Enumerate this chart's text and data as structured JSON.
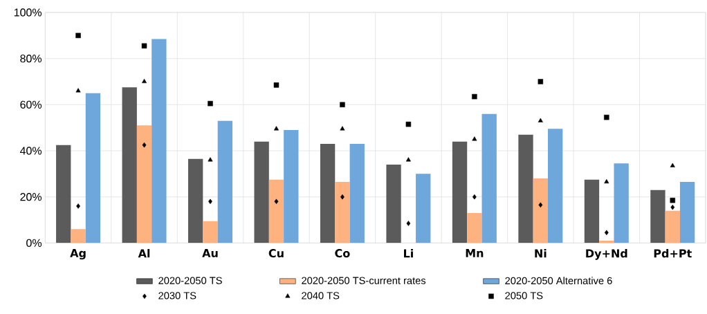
{
  "chart_data": {
    "type": "bar",
    "categories": [
      "Ag",
      "Al",
      "Au",
      "Cu",
      "Co",
      "Li",
      "Mn",
      "Ni",
      "Dy+Nd",
      "Pd+Pt"
    ],
    "series": [
      {
        "name": "2020-2050 TS",
        "color": "#5b5b5b",
        "values": [
          42.5,
          67.5,
          36.5,
          44,
          43,
          34,
          44,
          47,
          27.5,
          23
        ]
      },
      {
        "name": "2020-2050 TS-current rates",
        "color": "#fdb27f",
        "values": [
          6,
          51,
          9.5,
          27.5,
          26.5,
          null,
          13,
          28,
          1,
          14
        ]
      },
      {
        "name": "2020-2050 Alternative 6",
        "color": "#6ea7dc",
        "values": [
          65,
          88.5,
          53,
          49,
          43,
          30,
          56,
          49.5,
          34.5,
          26.5
        ]
      },
      {
        "name": "2030 TS",
        "type": "scatter",
        "marker": "diamond",
        "color": "#000000",
        "values": [
          16,
          42.5,
          18,
          18,
          20,
          8.5,
          20,
          16.5,
          4.5,
          15.5
        ]
      },
      {
        "name": "2040 TS",
        "type": "scatter",
        "marker": "triangle",
        "color": "#000000",
        "values": [
          66,
          70,
          36,
          49.5,
          49.5,
          36,
          45,
          53,
          26.5,
          33.5
        ]
      },
      {
        "name": "2050 TS",
        "type": "scatter",
        "marker": "square",
        "color": "#000000",
        "values": [
          90,
          85.5,
          60.5,
          68.5,
          60,
          51.5,
          63.5,
          70,
          54.5,
          18.5
        ]
      }
    ],
    "ylim": [
      0,
      100
    ],
    "yticks": [
      {
        "value": 0,
        "label": "0%"
      },
      {
        "value": 20,
        "label": "20%"
      },
      {
        "value": 40,
        "label": "40%"
      },
      {
        "value": 60,
        "label": "60%"
      },
      {
        "value": 80,
        "label": "80%"
      },
      {
        "value": 100,
        "label": "100%"
      }
    ],
    "grid": true,
    "legend": "bottom"
  }
}
